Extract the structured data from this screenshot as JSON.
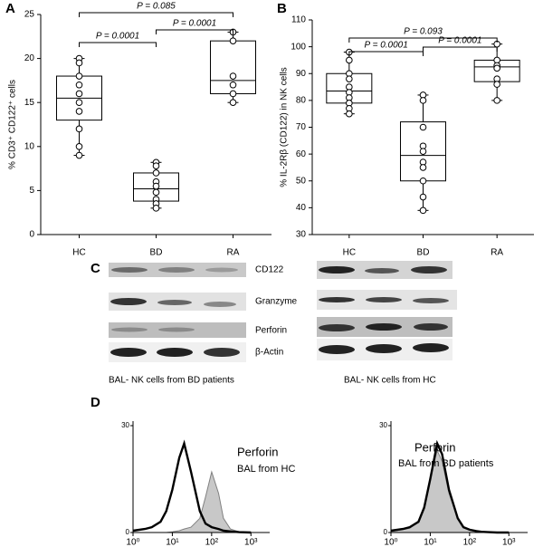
{
  "panel_labels": [
    "A",
    "B",
    "C",
    "D"
  ],
  "blots": {
    "labels": [
      "CD122",
      "Granzyme",
      "Perforin",
      "β-Actin"
    ],
    "captions": [
      "BAL- NK cells from BD patients",
      "BAL- NK cells from HC"
    ]
  },
  "chart_data": [
    {
      "type": "box",
      "ylabel": "% CD3⁺ CD122⁺ cells",
      "categories": [
        "HC",
        "BD",
        "RA"
      ],
      "boxes": [
        {
          "min": 9,
          "q1": 13,
          "median": 15.5,
          "q3": 18,
          "max": 20
        },
        {
          "min": 3,
          "q1": 3.8,
          "median": 5.2,
          "q3": 7,
          "max": 8.2
        },
        {
          "min": 15,
          "q1": 16,
          "median": 17.5,
          "q3": 22,
          "max": 23
        }
      ],
      "points": [
        [
          20,
          19.5,
          18,
          17,
          16,
          15,
          14,
          12,
          10,
          9
        ],
        [
          8.2,
          7.8,
          7,
          6,
          5.5,
          4.8,
          4,
          3.5,
          3
        ],
        [
          23,
          22,
          18,
          17,
          16,
          15
        ]
      ],
      "annotations": [
        "P = 0.085",
        "P = 0.0001",
        "P = 0.0001"
      ],
      "ylim": [
        0,
        25
      ],
      "yticks": [
        0,
        5,
        10,
        15,
        20,
        25
      ]
    },
    {
      "type": "box",
      "ylabel": "% IL-2Rβ (CD122) in NK cells",
      "categories": [
        "HC",
        "BD",
        "RA"
      ],
      "boxes": [
        {
          "min": 75,
          "q1": 79,
          "median": 83.5,
          "q3": 90,
          "max": 98
        },
        {
          "min": 39,
          "q1": 50,
          "median": 59.5,
          "q3": 72,
          "max": 82
        },
        {
          "min": 80,
          "q1": 87,
          "median": 92.5,
          "q3": 95,
          "max": 101
        }
      ],
      "points": [
        [
          98,
          95,
          90,
          88,
          85,
          83,
          81,
          79,
          77,
          75
        ],
        [
          82,
          80,
          70,
          63,
          61,
          57,
          55,
          50,
          44,
          39
        ],
        [
          101,
          95,
          93,
          92,
          88,
          86,
          80
        ]
      ],
      "annotations": [
        "P = 0.093",
        "P = 0.0001",
        "P = 0.0001"
      ],
      "ylim": [
        30,
        110
      ],
      "yticks": [
        30,
        40,
        50,
        60,
        70,
        80,
        90,
        100,
        110
      ]
    },
    {
      "type": "line",
      "xscale": "log",
      "annotations": [
        "Perforin",
        "BAL from HC"
      ],
      "x": [
        1,
        2,
        3,
        5,
        7,
        10,
        15,
        20,
        30,
        50,
        70,
        100,
        150,
        200,
        300,
        500,
        1000
      ],
      "series": [
        {
          "color": "#808080",
          "fill": "#c8c8c8",
          "values": [
            0,
            0,
            0,
            0,
            0,
            0.2,
            0.5,
            1,
            1.5,
            4,
            10,
            17,
            11,
            4,
            1,
            0.2,
            0
          ]
        },
        {
          "color": "#000000",
          "values": [
            0.5,
            1,
            1.5,
            3,
            6,
            12,
            21,
            25,
            17,
            6,
            2.5,
            1.5,
            1,
            0.5,
            0.3,
            0.1,
            0
          ]
        }
      ],
      "xlim": [
        1,
        3000
      ],
      "xticks": [
        {
          "value": 1,
          "label": "10⁰"
        },
        {
          "value": 10,
          "label": "10¹"
        },
        {
          "value": 100,
          "label": "10²"
        },
        {
          "value": 1000,
          "label": "10³"
        }
      ],
      "ylim": [
        0,
        30
      ],
      "yticks": [
        0,
        30
      ]
    },
    {
      "type": "line",
      "xscale": "log",
      "annotations": [
        "Perforin",
        "BAL from BD patients"
      ],
      "x": [
        1,
        2,
        3,
        5,
        7,
        10,
        15,
        20,
        30,
        50,
        70,
        100,
        150,
        200,
        300,
        500,
        1000
      ],
      "series": [
        {
          "color": "#808080",
          "fill": "#c8c8c8",
          "values": [
            0.3,
            0.8,
            1.2,
            3,
            7,
            15,
            23,
            20,
            11,
            4,
            1.5,
            0.8,
            0.4,
            0.2,
            0.1,
            0,
            0
          ]
        },
        {
          "color": "#000000",
          "values": [
            0.5,
            1,
            1.5,
            3,
            7,
            15,
            25,
            22,
            12,
            4,
            1.5,
            0.8,
            0.4,
            0.2,
            0.1,
            0,
            0
          ]
        }
      ],
      "xlim": [
        1,
        3000
      ],
      "xticks": [
        {
          "value": 1,
          "label": "10⁰"
        },
        {
          "value": 10,
          "label": "10¹"
        },
        {
          "value": 100,
          "label": "10²"
        },
        {
          "value": 1000,
          "label": "10³"
        }
      ],
      "ylim": [
        0,
        30
      ],
      "yticks": [
        0,
        30
      ]
    }
  ]
}
